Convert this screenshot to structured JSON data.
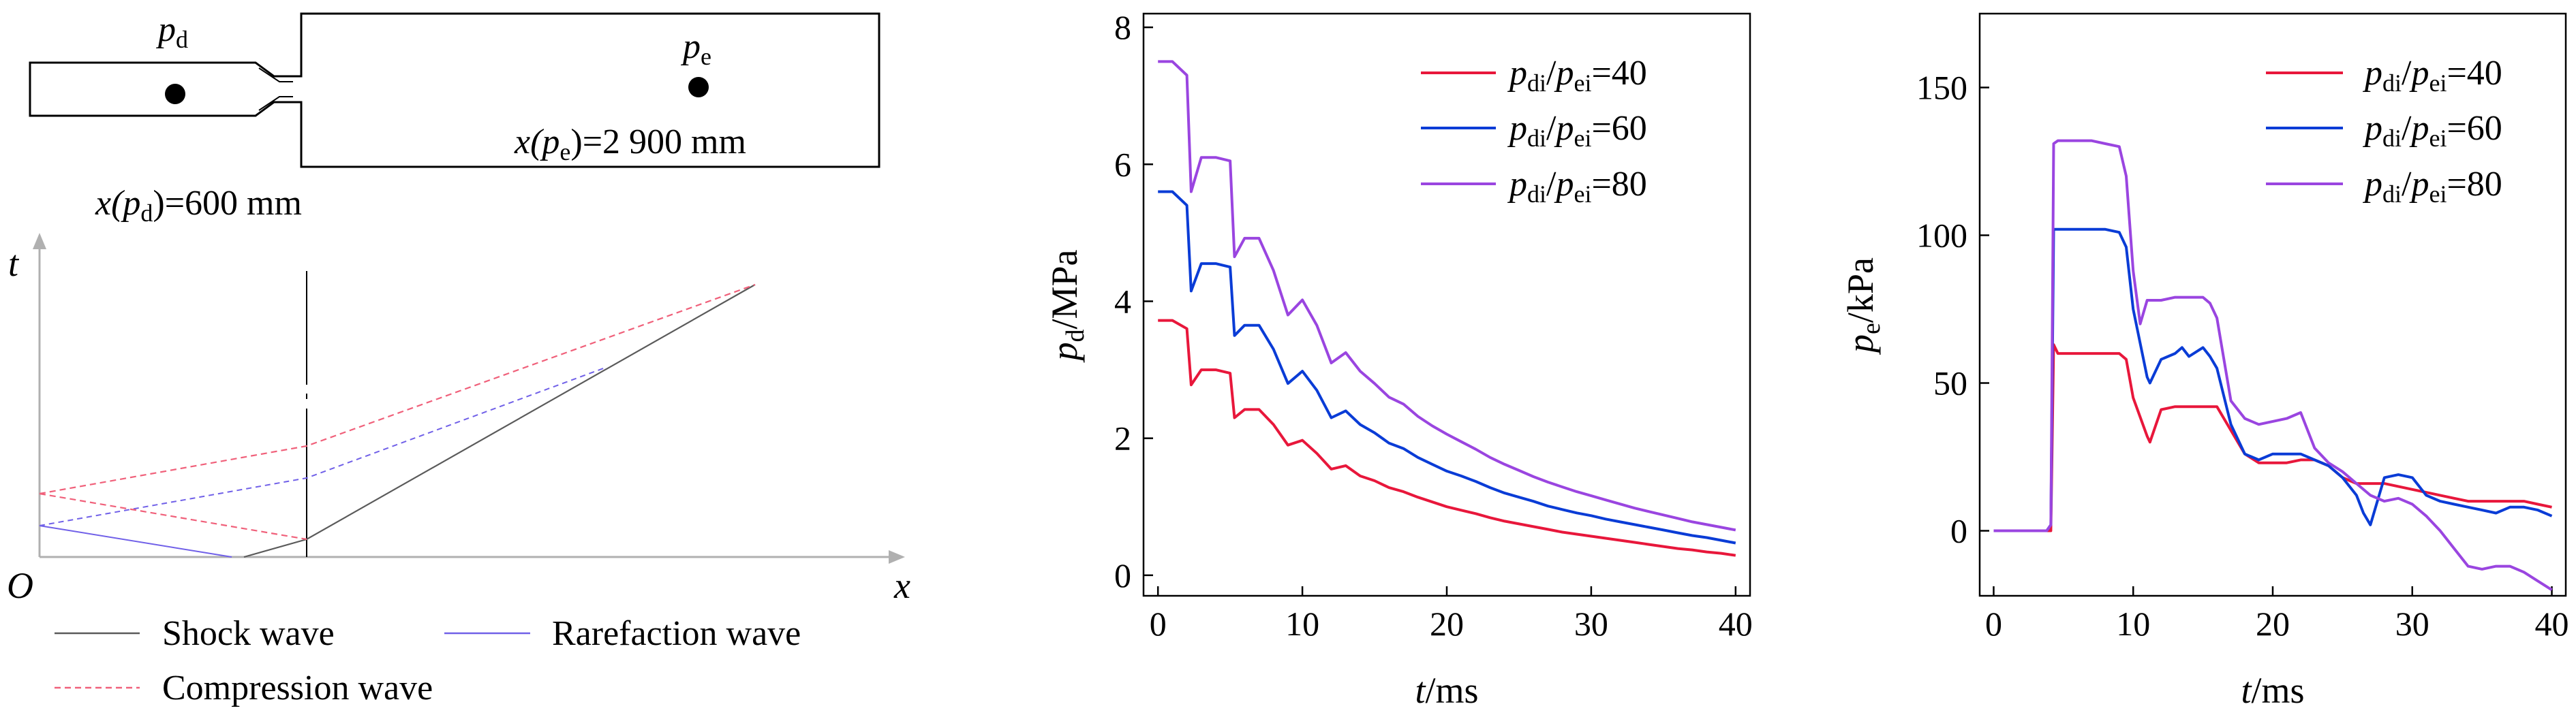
{
  "colors": {
    "red": "#e8173b",
    "blue": "#0a3cd6",
    "purple": "#9a45e0",
    "shock": "#5a5a5a",
    "compression": "#f0607a",
    "rarefaction": "#7060e8",
    "axis": "#b0b0b0",
    "black": "#000000"
  },
  "schematic": {
    "pd_label": {
      "base": "p",
      "sub": "d"
    },
    "pe_label": {
      "base": "p",
      "sub": "e"
    },
    "pe_position": {
      "pre": "x(",
      "base": "p",
      "sub": "e",
      "post": ")=2 900 mm"
    },
    "pd_position": {
      "pre": "x(",
      "base": "p",
      "sub": "d",
      "post": ")=600 mm"
    }
  },
  "wave_diagram": {
    "t_axis_label": "t",
    "x_axis_label": "x",
    "origin_label": "O",
    "legend": {
      "shock": "Shock wave",
      "rarefaction": "Rarefaction wave",
      "compression": "Compression wave"
    }
  },
  "chart_data": [
    {
      "type": "line",
      "xlabel": {
        "base": "t",
        "rest": "/ms"
      },
      "ylabel": {
        "base": "p",
        "sub": "d",
        "rest": "/MPa"
      },
      "xlim": [
        -1,
        41
      ],
      "ylim": [
        -0.3,
        8.2
      ],
      "xticks": [
        0,
        10,
        20,
        30,
        40
      ],
      "yticks": [
        0,
        2,
        4,
        6,
        8
      ],
      "legend_position": "top-right",
      "series": [
        {
          "name": {
            "a": "p",
            "as": "di",
            "b": "p",
            "bs": "ei",
            "v": "=40"
          },
          "color": "red",
          "x": [
            0,
            1,
            2,
            2.3,
            3,
            4,
            5,
            5.3,
            6,
            7,
            8,
            9,
            10,
            11,
            12,
            13,
            14,
            15,
            16,
            17,
            18,
            19,
            20,
            21,
            22,
            23,
            24,
            25,
            26,
            27,
            28,
            29,
            30,
            31,
            32,
            33,
            34,
            35,
            36,
            37,
            38,
            39,
            40
          ],
          "y": [
            3.72,
            3.72,
            3.6,
            2.78,
            3.0,
            3.0,
            2.95,
            2.3,
            2.42,
            2.42,
            2.2,
            1.9,
            1.97,
            1.78,
            1.55,
            1.6,
            1.45,
            1.38,
            1.28,
            1.22,
            1.14,
            1.07,
            1.0,
            0.95,
            0.9,
            0.84,
            0.79,
            0.75,
            0.71,
            0.67,
            0.63,
            0.6,
            0.57,
            0.54,
            0.51,
            0.48,
            0.45,
            0.42,
            0.39,
            0.37,
            0.34,
            0.32,
            0.29
          ]
        },
        {
          "name": {
            "a": "p",
            "as": "di",
            "b": "p",
            "bs": "ei",
            "v": "=60"
          },
          "color": "blue",
          "x": [
            0,
            1,
            2,
            2.3,
            3,
            4,
            5,
            5.3,
            6,
            7,
            8,
            9,
            10,
            11,
            12,
            13,
            14,
            15,
            16,
            17,
            18,
            19,
            20,
            21,
            22,
            23,
            24,
            25,
            26,
            27,
            28,
            29,
            30,
            31,
            32,
            33,
            34,
            35,
            36,
            37,
            38,
            39,
            40
          ],
          "y": [
            5.6,
            5.6,
            5.4,
            4.15,
            4.55,
            4.55,
            4.5,
            3.5,
            3.65,
            3.65,
            3.3,
            2.8,
            2.98,
            2.7,
            2.3,
            2.4,
            2.2,
            2.08,
            1.93,
            1.85,
            1.72,
            1.62,
            1.52,
            1.45,
            1.37,
            1.28,
            1.2,
            1.14,
            1.08,
            1.01,
            0.96,
            0.91,
            0.87,
            0.82,
            0.78,
            0.74,
            0.7,
            0.66,
            0.62,
            0.58,
            0.55,
            0.51,
            0.47
          ]
        },
        {
          "name": {
            "a": "p",
            "as": "di",
            "b": "p",
            "bs": "ei",
            "v": "=80"
          },
          "color": "purple",
          "x": [
            0,
            1,
            2,
            2.3,
            3,
            4,
            5,
            5.3,
            6,
            7,
            8,
            9,
            10,
            11,
            12,
            13,
            14,
            15,
            16,
            17,
            18,
            19,
            20,
            21,
            22,
            23,
            24,
            25,
            26,
            27,
            28,
            29,
            30,
            31,
            32,
            33,
            34,
            35,
            36,
            37,
            38,
            39,
            40
          ],
          "y": [
            7.5,
            7.5,
            7.3,
            5.6,
            6.1,
            6.1,
            6.05,
            4.65,
            4.92,
            4.92,
            4.45,
            3.8,
            4.02,
            3.65,
            3.1,
            3.25,
            2.98,
            2.8,
            2.6,
            2.5,
            2.32,
            2.18,
            2.06,
            1.95,
            1.84,
            1.72,
            1.62,
            1.53,
            1.44,
            1.36,
            1.29,
            1.22,
            1.16,
            1.1,
            1.04,
            0.98,
            0.93,
            0.88,
            0.83,
            0.78,
            0.74,
            0.7,
            0.66
          ]
        }
      ]
    },
    {
      "type": "line",
      "xlabel": {
        "base": "t",
        "rest": "/ms"
      },
      "ylabel": {
        "base": "p",
        "sub": "e",
        "rest": "/kPa"
      },
      "xlim": [
        -1,
        41
      ],
      "ylim": [
        -22,
        175
      ],
      "xticks": [
        0,
        10,
        20,
        30,
        40
      ],
      "yticks": [
        0,
        50,
        100,
        150
      ],
      "legend_position": "top-right",
      "series": [
        {
          "name": {
            "a": "p",
            "as": "di",
            "b": "p",
            "bs": "ei",
            "v": "=40"
          },
          "color": "red",
          "x": [
            0,
            3.8,
            4.1,
            4.3,
            4.6,
            5,
            6,
            7,
            8,
            9,
            9.5,
            10,
            11,
            11.2,
            12,
            13,
            14,
            15,
            16,
            17,
            18,
            19,
            20,
            21,
            22,
            23,
            24,
            25,
            26,
            27,
            28,
            29,
            30,
            31,
            32,
            33,
            34,
            35,
            36,
            37,
            38,
            39,
            40
          ],
          "y": [
            0,
            0,
            0,
            63,
            60,
            60,
            60,
            60,
            60,
            60,
            58,
            45,
            32,
            30,
            41,
            42,
            42,
            42,
            42,
            34,
            26,
            23,
            23,
            23,
            24,
            24,
            22,
            18,
            16,
            16,
            16,
            15,
            14,
            13,
            12,
            11,
            10,
            10,
            10,
            10,
            10,
            9,
            8
          ]
        },
        {
          "name": {
            "a": "p",
            "as": "di",
            "b": "p",
            "bs": "ei",
            "v": "=60"
          },
          "color": "blue",
          "x": [
            0,
            3.8,
            4.1,
            4.3,
            4.6,
            5,
            6,
            7,
            8,
            9,
            9.5,
            10,
            11,
            11.2,
            12,
            13,
            13.5,
            14,
            15,
            15.5,
            16,
            17,
            18,
            19,
            20,
            21,
            22,
            23,
            24,
            25,
            26,
            26.5,
            27,
            28,
            29,
            30,
            31,
            32,
            33,
            34,
            35,
            36,
            37,
            38,
            39,
            40
          ],
          "y": [
            0,
            0,
            2,
            102,
            102,
            102,
            102,
            102,
            102,
            101,
            96,
            75,
            52,
            50,
            58,
            60,
            62,
            59,
            62,
            59,
            55,
            36,
            26,
            24,
            26,
            26,
            26,
            24,
            22,
            18,
            12,
            6,
            2,
            18,
            19,
            18,
            12,
            10,
            9,
            8,
            7,
            6,
            8,
            8,
            7,
            5
          ]
        },
        {
          "name": {
            "a": "p",
            "as": "di",
            "b": "p",
            "bs": "ei",
            "v": "=80"
          },
          "color": "purple",
          "x": [
            0,
            3.8,
            4.1,
            4.3,
            4.6,
            5,
            6,
            7,
            8,
            9,
            9.5,
            10,
            10.5,
            11,
            12,
            13,
            14,
            15,
            15.5,
            16,
            17,
            18,
            19,
            20,
            21,
            22,
            23,
            24,
            25,
            26,
            27,
            28,
            29,
            30,
            31,
            32,
            33,
            34,
            35,
            36,
            37,
            38,
            39,
            40
          ],
          "y": [
            0,
            0,
            2,
            131,
            132,
            132,
            132,
            132,
            131,
            130,
            120,
            88,
            70,
            78,
            78,
            79,
            79,
            79,
            77,
            72,
            44,
            38,
            36,
            37,
            38,
            40,
            28,
            23,
            20,
            16,
            12,
            10,
            11,
            9,
            5,
            0,
            -6,
            -12,
            -13,
            -12,
            -12,
            -14,
            -17,
            -20
          ]
        }
      ]
    }
  ]
}
